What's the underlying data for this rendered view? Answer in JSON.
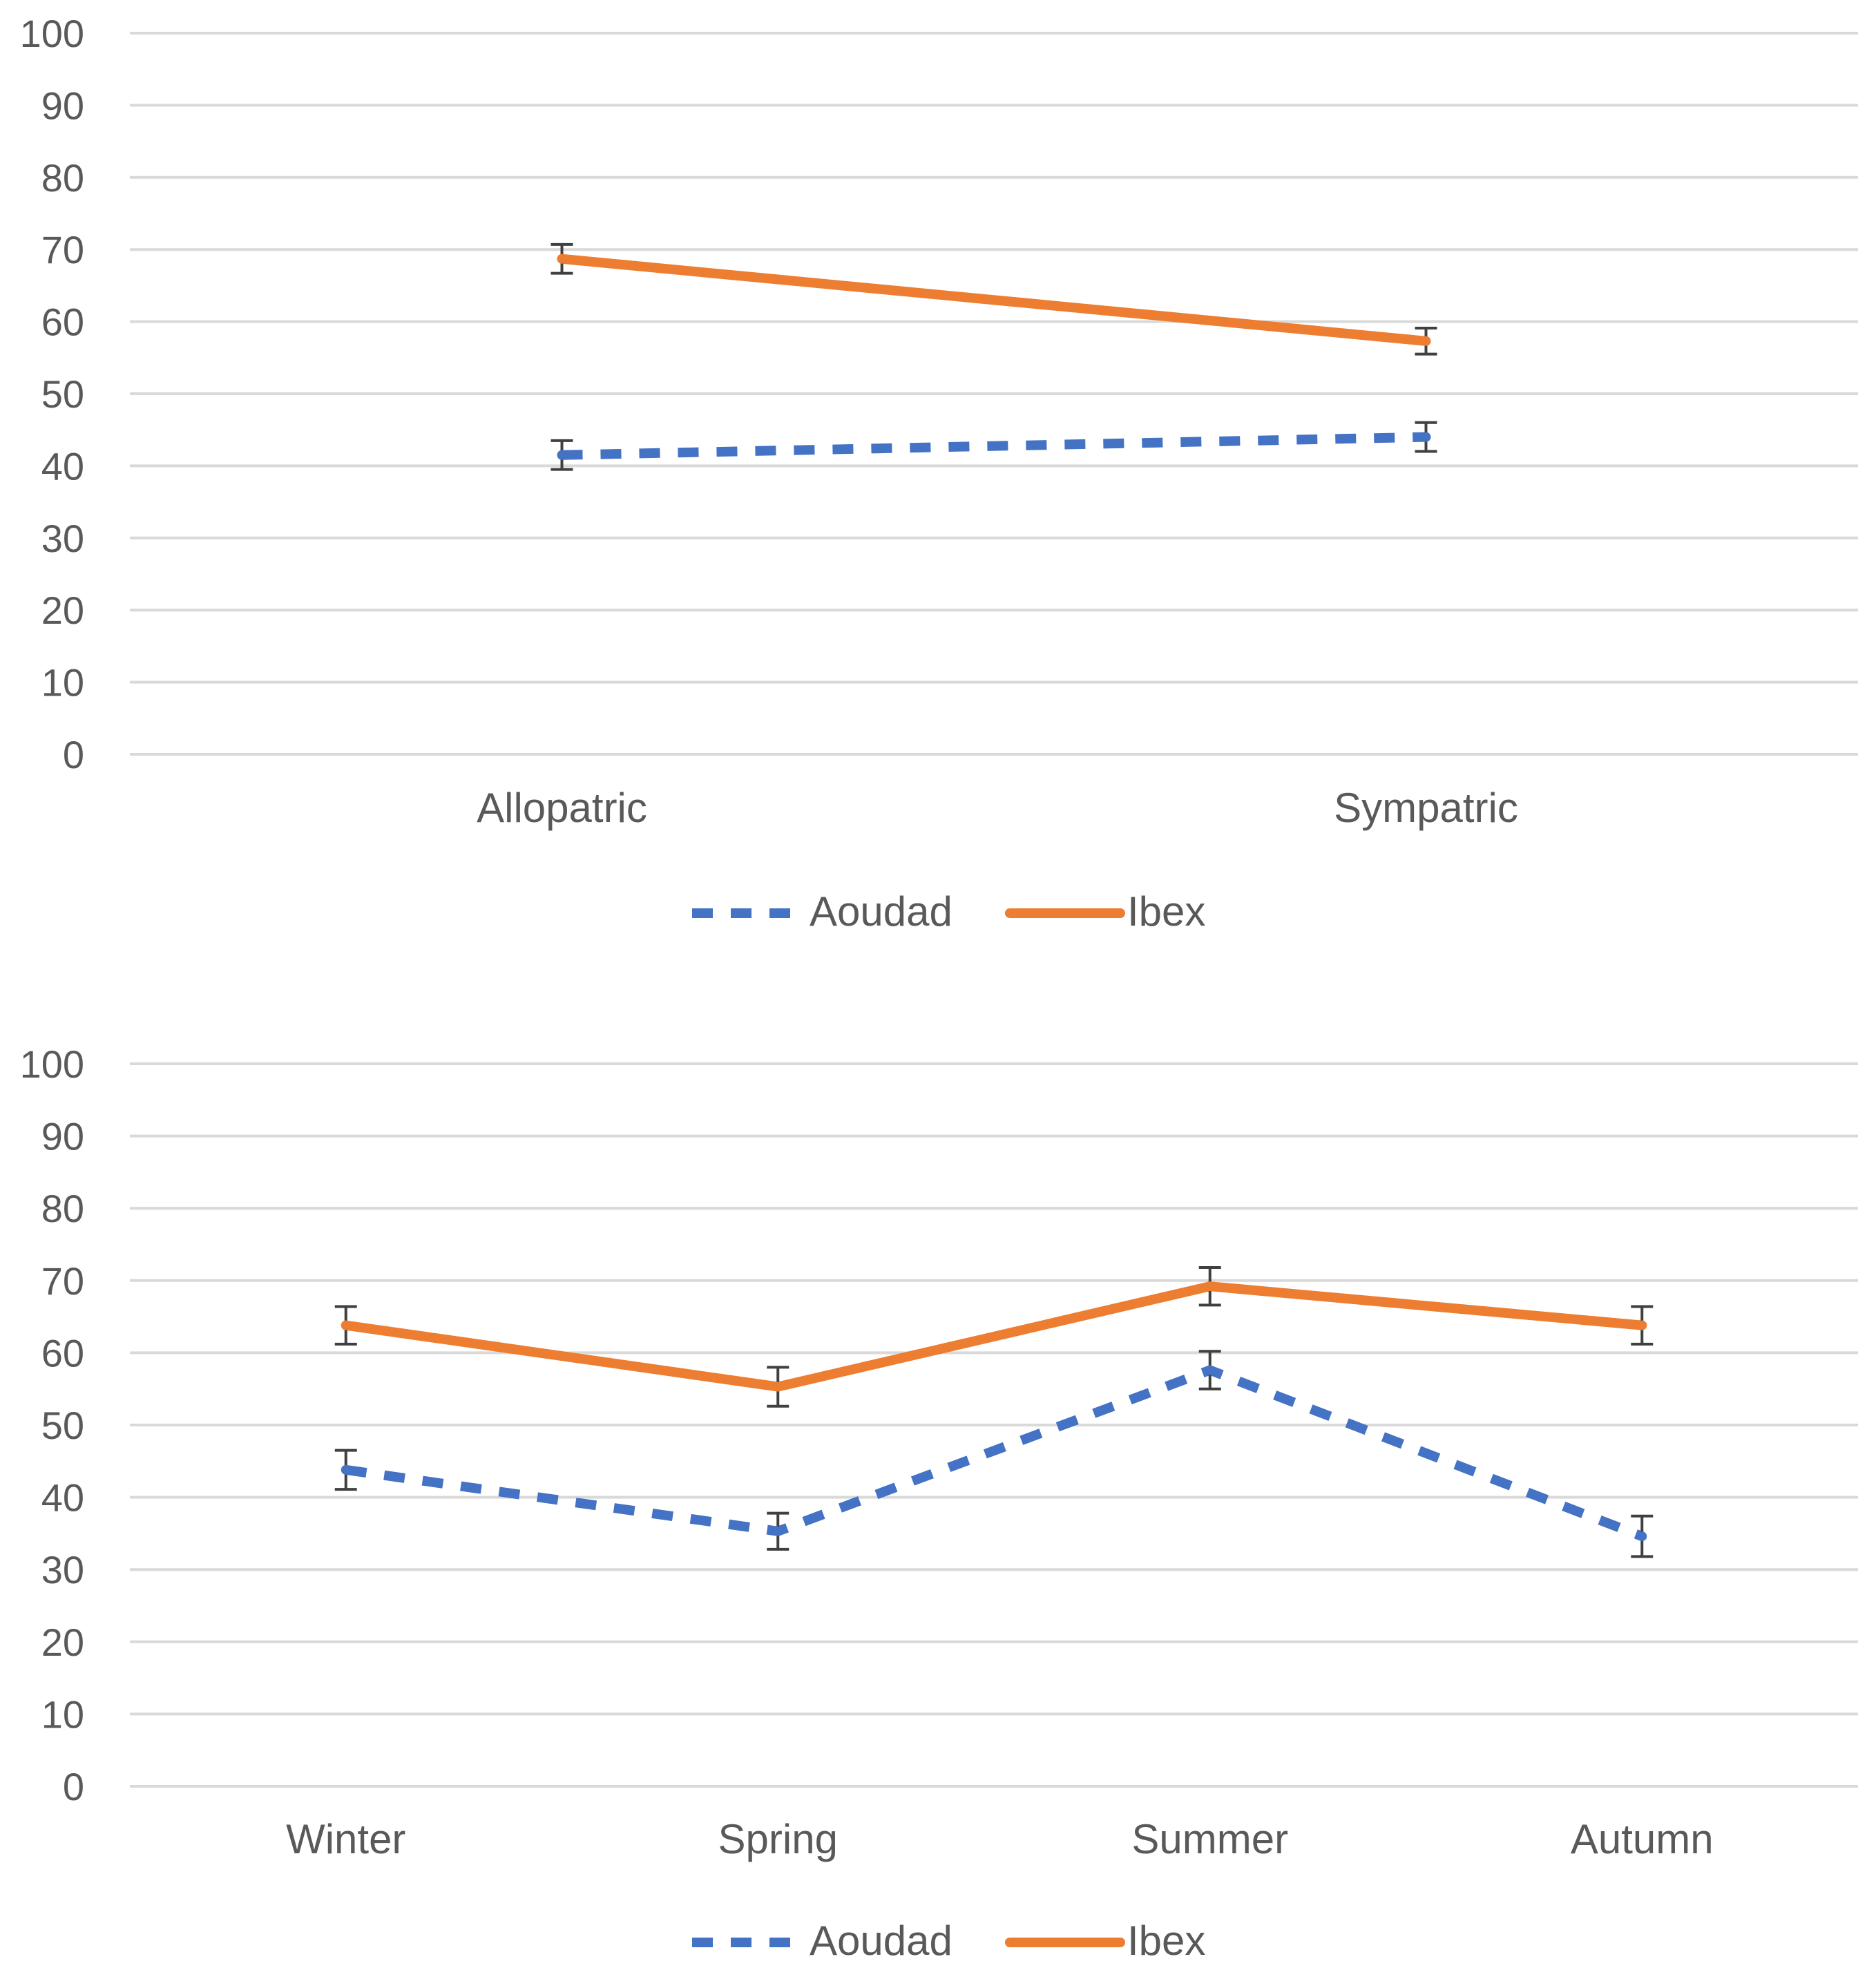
{
  "colors": {
    "aoudad": "#4472C4",
    "ibex": "#ED7D31",
    "grid": "#d9d9d9",
    "text": "#595959"
  },
  "chart_data": [
    {
      "type": "line",
      "title": "",
      "xlabel": "",
      "ylabel": "",
      "ylim": [
        0,
        100
      ],
      "yticks": [
        "0",
        "10",
        "20",
        "30",
        "40",
        "50",
        "60",
        "70",
        "80",
        "90",
        "100"
      ],
      "grid": true,
      "legend": "bottom-center",
      "categories": [
        "Allopatric",
        "Sympatric"
      ],
      "series": [
        {
          "name": "Aoudad",
          "style": "dashed",
          "values": [
            41.5,
            44
          ],
          "errors": [
            2,
            2
          ]
        },
        {
          "name": "Ibex",
          "style": "solid",
          "values": [
            68.7,
            57.3
          ],
          "errors": [
            2,
            1.8
          ]
        }
      ]
    },
    {
      "type": "line",
      "title": "",
      "xlabel": "",
      "ylabel": "",
      "ylim": [
        0,
        100
      ],
      "yticks": [
        "0",
        "10",
        "20",
        "30",
        "40",
        "50",
        "60",
        "70",
        "80",
        "90",
        "100"
      ],
      "grid": true,
      "legend": "bottom-center",
      "categories": [
        "Winter",
        "Spring",
        "Summer",
        "Autumn"
      ],
      "series": [
        {
          "name": "Aoudad",
          "style": "dashed",
          "values": [
            43.8,
            35.3,
            57.6,
            34.6
          ],
          "errors": [
            2.7,
            2.5,
            2.6,
            2.8
          ]
        },
        {
          "name": "Ibex",
          "style": "solid",
          "values": [
            63.8,
            55.3,
            69.2,
            63.8
          ],
          "errors": [
            2.6,
            2.7,
            2.6,
            2.6
          ]
        }
      ]
    }
  ]
}
